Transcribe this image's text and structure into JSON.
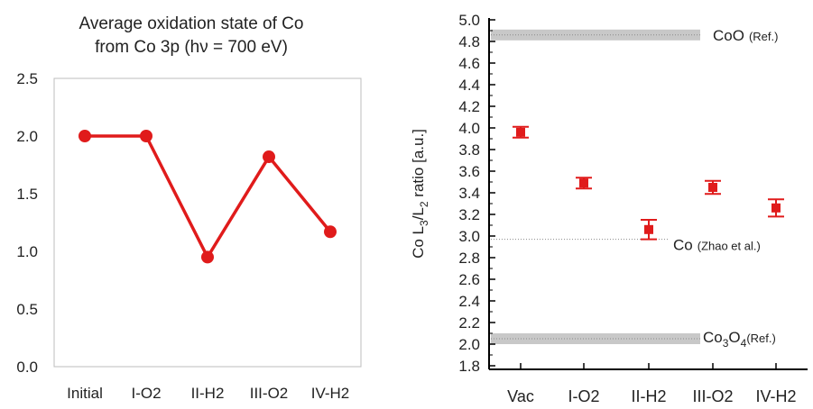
{
  "chart_data": [
    {
      "type": "line",
      "title": "Average oxidation state of Co",
      "subtitle": "from Co 3p (hν = 700 eV)",
      "categories": [
        "Initial",
        "I-O2",
        "II-H2",
        "III-O2",
        "IV-H2"
      ],
      "values": [
        2.0,
        2.0,
        0.95,
        1.82,
        1.17
      ],
      "ylim": [
        0.0,
        2.5
      ],
      "ytick_labels": [
        "0.0",
        "0.5",
        "1.0",
        "1.5",
        "2.0",
        "2.5"
      ],
      "grid": false,
      "series_color": "#e01b1b"
    },
    {
      "type": "scatter",
      "ylabel_parts": [
        "Co L",
        "3",
        "/L",
        "2",
        " ratio [a.u.]"
      ],
      "categories": [
        "Vac",
        "I-O2",
        "II-H2",
        "III-O2",
        "IV-H2"
      ],
      "values": [
        3.96,
        3.49,
        3.06,
        3.45,
        3.26
      ],
      "error": [
        0.05,
        0.05,
        0.09,
        0.06,
        0.08
      ],
      "ylim": [
        1.8,
        5.0
      ],
      "ytick_labels": [
        "1.8",
        "2.0",
        "2.2",
        "2.4",
        "2.6",
        "2.8",
        "3.0",
        "3.2",
        "3.4",
        "3.6",
        "3.8",
        "4.0",
        "4.2",
        "4.4",
        "4.6",
        "4.8",
        "5.0"
      ],
      "series_color": "#e01b1b",
      "references": [
        {
          "label": "CoO",
          "note": "(Ref.)",
          "y": 4.86,
          "band": true
        },
        {
          "label": "Co",
          "note": "(Zhao et al.)",
          "y": 2.97,
          "band": false
        },
        {
          "label_parts": [
            "Co",
            "3",
            "O",
            "4"
          ],
          "note": "(Ref.)",
          "y": 2.05,
          "band": true
        }
      ]
    }
  ]
}
